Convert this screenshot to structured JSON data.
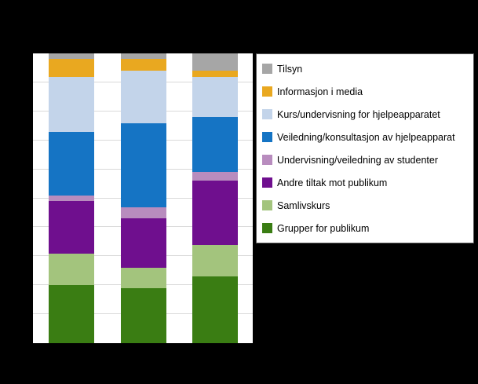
{
  "chart_data": {
    "type": "bar",
    "stacked": true,
    "orientation": "vertical",
    "categories": [
      "",
      "",
      ""
    ],
    "unit": "percent",
    "ylim": [
      0,
      100
    ],
    "grid": "horizontal",
    "gridline_step": 10,
    "legend_position": "right",
    "plot_background": "#ffffff",
    "page_background": "#000000",
    "series": [
      {
        "name": "Tilsyn",
        "color": "#a6a6a6",
        "values": [
          2,
          2,
          6
        ]
      },
      {
        "name": "Informasjon i media",
        "color": "#e9a820",
        "values": [
          6,
          4,
          2
        ]
      },
      {
        "name": "Kurs/undervisning for hjelpeapparatet",
        "color": "#c3d4ea",
        "values": [
          19,
          18,
          14
        ]
      },
      {
        "name": "Veiledning/konsultasjon av hjelpeapparat",
        "color": "#1574c4",
        "values": [
          22,
          29,
          19
        ]
      },
      {
        "name": "Undervisning/veiledning av studenter",
        "color": "#b88cbe",
        "values": [
          2,
          4,
          3
        ]
      },
      {
        "name": "Andre tiltak mot publikum",
        "color": "#6f0f8e",
        "values": [
          18,
          17,
          22
        ]
      },
      {
        "name": "Samlivskurs",
        "color": "#a3c47d",
        "values": [
          11,
          7,
          11
        ]
      },
      {
        "name": "Grupper for publikum",
        "color": "#3a7d13",
        "values": [
          20,
          19,
          23
        ]
      }
    ]
  }
}
